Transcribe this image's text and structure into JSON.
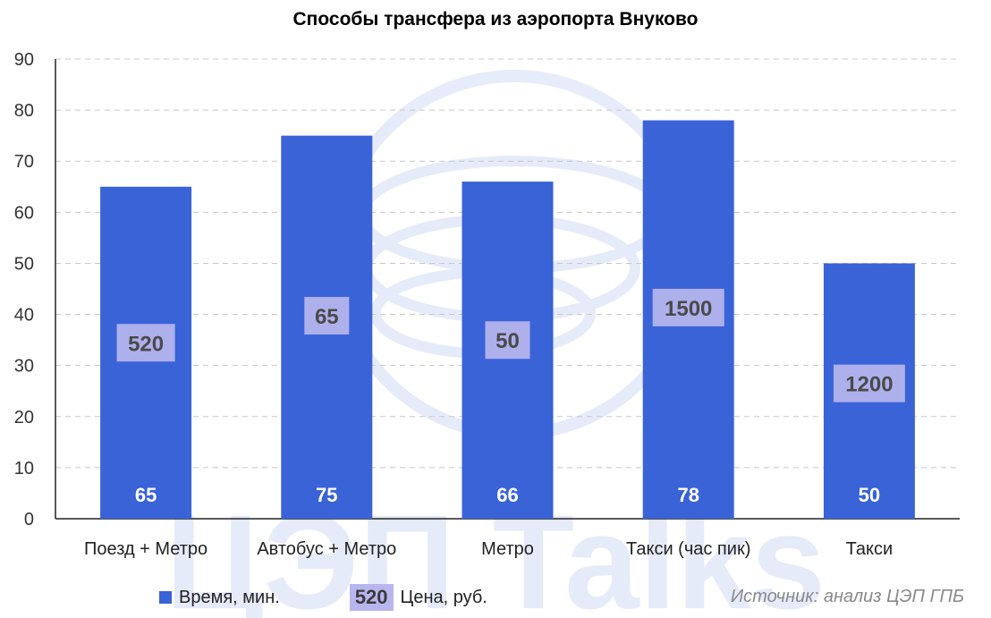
{
  "chart_data": {
    "type": "bar",
    "title": "Способы трансфера из аэропорта Внуково",
    "categories": [
      "Поезд + Метро",
      "Автобус + Метро",
      "Метро",
      "Такси (час пик)",
      "Такси"
    ],
    "series": [
      {
        "name": "Время, мин.",
        "values": [
          65,
          75,
          66,
          78,
          50
        ],
        "color": "#3a63d8"
      }
    ],
    "price_labels": [
      "520",
      "65",
      "50",
      "1500",
      "1200"
    ],
    "price_series_name": "Цена, руб.",
    "price_color": "#b8b6ee",
    "ylim": [
      0,
      90
    ],
    "yticks": [
      0,
      10,
      20,
      30,
      40,
      50,
      60,
      70,
      80,
      90
    ],
    "grid": true,
    "legend_position": "bottom-left",
    "legend_price_example": "520",
    "source_note": "Источник: анализ ЦЭП ГПБ",
    "watermark_text": "ЦЭП Talks"
  }
}
